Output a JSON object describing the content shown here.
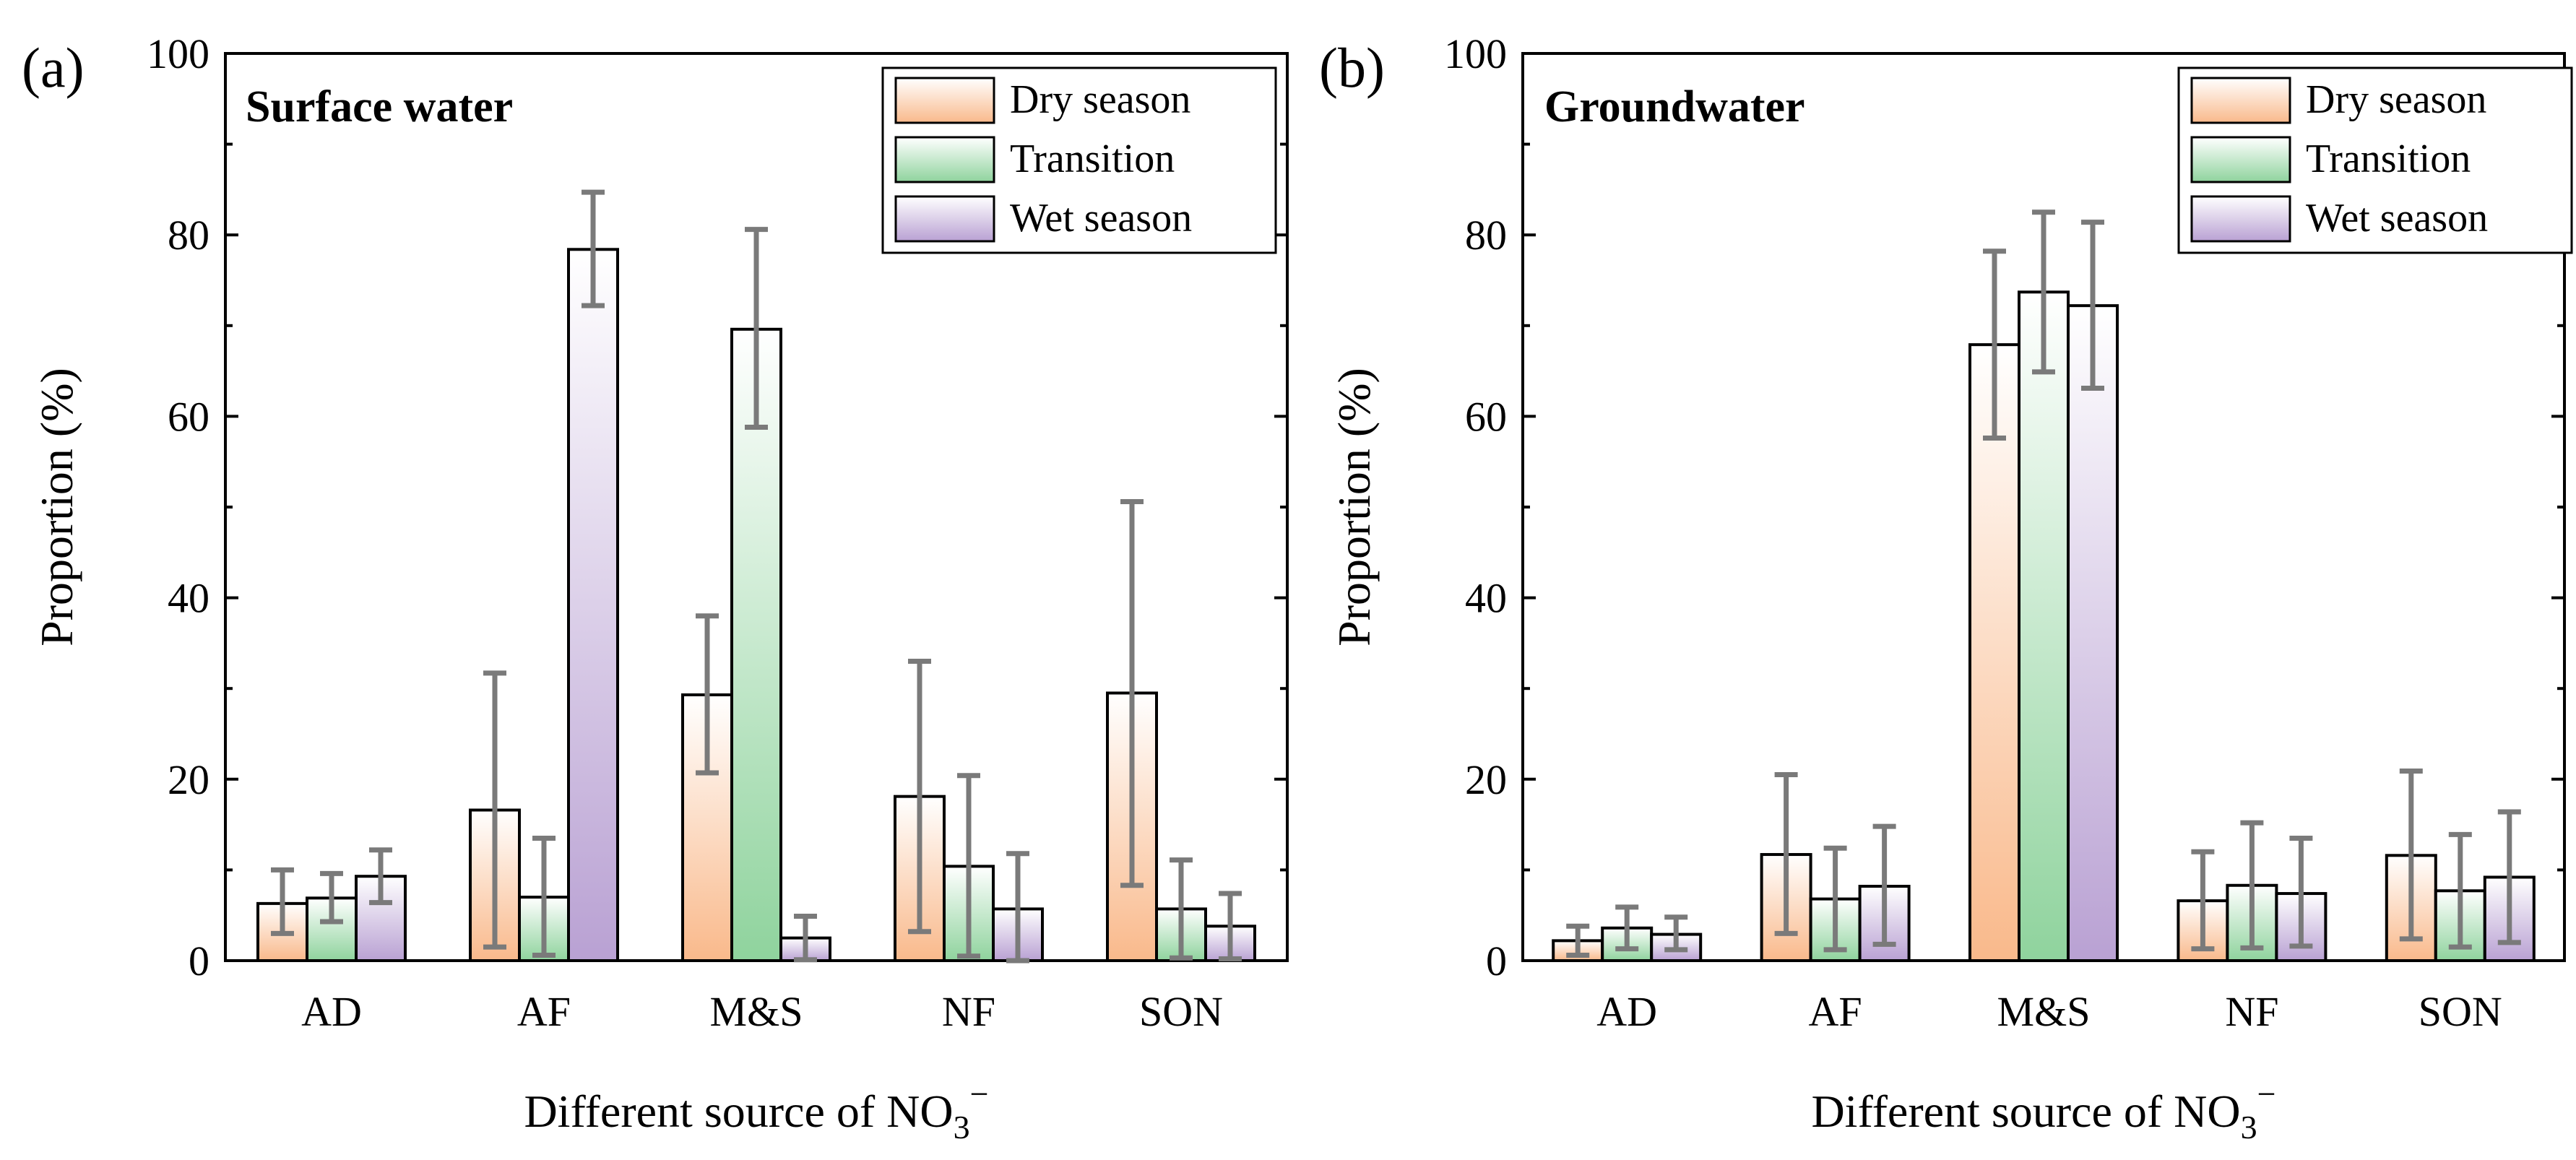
{
  "colors": {
    "dry": "#f9b98b",
    "transition": "#8fd39d",
    "wet": "#b9a1d3",
    "error_bar": "#7a7a7a",
    "axis": "#000000"
  },
  "chart_data": [
    {
      "type": "bar",
      "panel_label": "(a)",
      "title": "Surface water",
      "xlabel_main": "Different source of NO",
      "xlabel_sub": "3",
      "xlabel_sup": "−",
      "ylabel": "Proportion (%)",
      "ylim": [
        0,
        100
      ],
      "yticks": [
        "0",
        "20",
        "40",
        "60",
        "80",
        "100"
      ],
      "yticks_values": [
        0,
        20,
        40,
        60,
        80,
        100
      ],
      "categories": [
        "AD",
        "AF",
        "M&S",
        "NF",
        "SON"
      ],
      "legend_position": "top-right",
      "series": [
        {
          "name": "Dry season",
          "key": "dry",
          "values": [
            6.3,
            16.6,
            29.3,
            18.1,
            29.5
          ],
          "err_low": [
            3.0,
            1.5,
            20.7,
            3.2,
            8.3
          ],
          "err_high": [
            10.0,
            31.7,
            38.0,
            33.0,
            50.6
          ]
        },
        {
          "name": "Transition",
          "key": "transition",
          "values": [
            6.9,
            7.0,
            69.6,
            10.4,
            5.7
          ],
          "err_low": [
            4.3,
            0.6,
            58.8,
            0.5,
            0.3
          ],
          "err_high": [
            9.6,
            13.5,
            80.6,
            20.4,
            11.1
          ]
        },
        {
          "name": "Wet season",
          "key": "wet",
          "values": [
            9.3,
            78.4,
            2.5,
            5.7,
            3.8
          ],
          "err_low": [
            6.4,
            72.2,
            0.1,
            0.0,
            0.2
          ],
          "err_high": [
            12.2,
            84.7,
            4.9,
            11.8,
            7.4
          ]
        }
      ]
    },
    {
      "type": "bar",
      "panel_label": "(b)",
      "title": "Groundwater",
      "xlabel_main": "Different source of NO",
      "xlabel_sub": "3",
      "xlabel_sup": "−",
      "ylabel": "Proportion (%)",
      "ylim": [
        0,
        100
      ],
      "yticks": [
        "0",
        "20",
        "40",
        "60",
        "80",
        "100"
      ],
      "yticks_values": [
        0,
        20,
        40,
        60,
        80,
        100
      ],
      "categories": [
        "AD",
        "AF",
        "M&S",
        "NF",
        "SON"
      ],
      "legend_position": "top-right",
      "series": [
        {
          "name": "Dry season",
          "key": "dry",
          "values": [
            2.2,
            11.7,
            67.9,
            6.6,
            11.6
          ],
          "err_low": [
            0.6,
            3.0,
            57.6,
            1.3,
            2.4
          ],
          "err_high": [
            3.8,
            20.5,
            78.2,
            12.0,
            20.9
          ]
        },
        {
          "name": "Transition",
          "key": "transition",
          "values": [
            3.6,
            6.8,
            73.7,
            8.3,
            7.7
          ],
          "err_low": [
            1.3,
            1.2,
            64.9,
            1.4,
            1.5
          ],
          "err_high": [
            5.9,
            12.4,
            82.5,
            15.2,
            13.9
          ]
        },
        {
          "name": "Wet season",
          "key": "wet",
          "values": [
            2.9,
            8.2,
            72.2,
            7.4,
            9.2
          ],
          "err_low": [
            1.2,
            1.8,
            63.1,
            1.6,
            2.0
          ],
          "err_high": [
            4.8,
            14.8,
            81.4,
            13.5,
            16.4
          ]
        }
      ]
    }
  ]
}
